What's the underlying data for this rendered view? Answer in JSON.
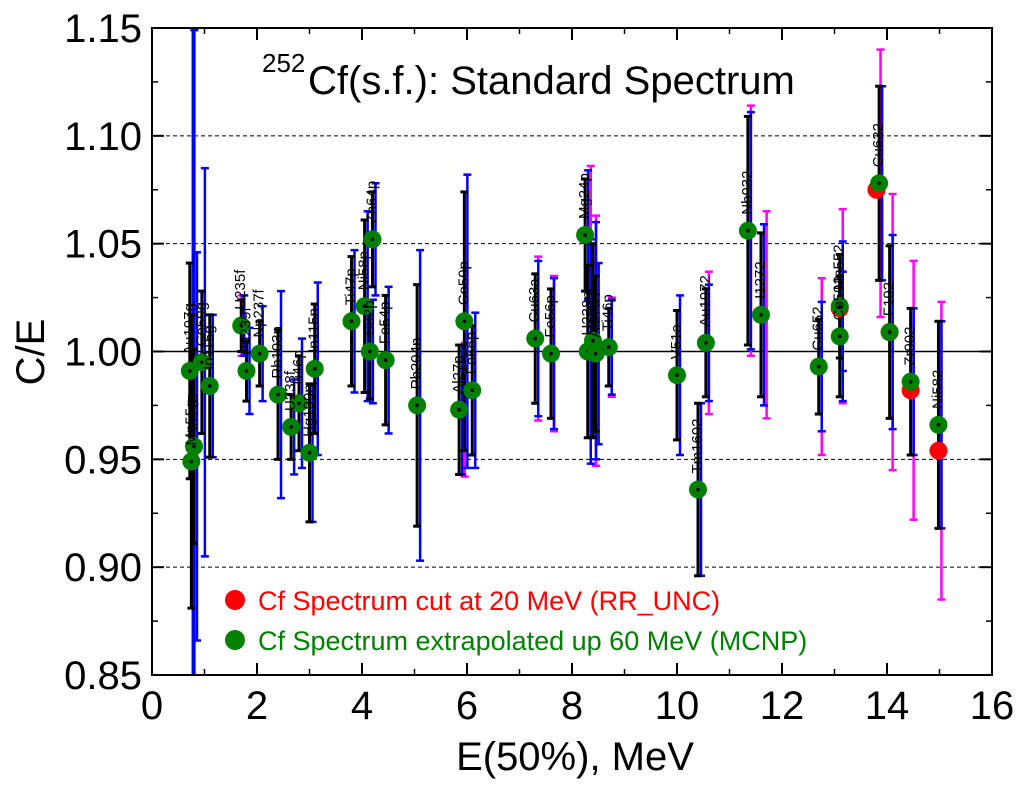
{
  "chart_data": {
    "type": "scatter",
    "title_prefix": "252",
    "title_main": "Cf(s.f.): Standard Spectrum",
    "xlabel": "E(50%),  MeV",
    "ylabel": "C/E",
    "xlim": [
      0,
      16
    ],
    "ylim": [
      0.85,
      1.15
    ],
    "x_ticks": [
      "0",
      "2",
      "4",
      "6",
      "8",
      "10",
      "12",
      "14",
      "16"
    ],
    "y_ticks": [
      "0.85",
      "0.90",
      "0.95",
      "1.00",
      "1.05",
      "1.10",
      "1.15"
    ],
    "grid": "dashed horizontal at 0.90, 0.95, 1.05, 1.10",
    "reference_line": 1.0,
    "legend_position": "bottom",
    "legend": [
      {
        "label": "Cf Spectrum cut at 20 MeV (RR_UNC)",
        "color": "#ff0000"
      },
      {
        "label": "Cf Spectrum extrapolated up 60 MeV (MCNP)",
        "color": "#008000"
      }
    ],
    "error_colors": {
      "blue": "#0000ff",
      "magenta": "#ff00ff",
      "black": "#000000"
    },
    "points": [
      {
        "label": "Mn55g",
        "x": 0.75,
        "y": 0.949,
        "err_b": 0.2,
        "err_k": 0.068
      },
      {
        "label": "In115",
        "x": 0.8,
        "y": 0.956,
        "err_b": 0.09,
        "err_k": 0.045
      },
      {
        "label": "Au197g",
        "x": 0.72,
        "y": 0.991,
        "err_b": 0.16,
        "err_k": 0.05
      },
      {
        "label": "Co59g",
        "x": 0.95,
        "y": 0.995,
        "err_b": 0.09,
        "err_k": 0.033
      },
      {
        "label": "In115g",
        "x": 1.1,
        "y": 0.984,
        "err_b": 0.033,
        "err_k": 0.033
      },
      {
        "label": "U235f",
        "x": 1.7,
        "y": 1.012,
        "err_b": 0.014,
        "err_k": 0.012
      },
      {
        "label": "Pu239f",
        "x": 1.8,
        "y": 0.991,
        "err_b": 0.02,
        "err_k": 0.014
      },
      {
        "label": "Np237f",
        "x": 2.05,
        "y": 0.999,
        "err_b": 0.022,
        "err_k": 0.015
      },
      {
        "label": "Rh103n",
        "x": 2.4,
        "y": 0.98,
        "err_b": 0.048,
        "err_k": 0.03
      },
      {
        "label": "U238f",
        "x": 2.65,
        "y": 0.965,
        "err_b": 0.022,
        "err_k": 0.015
      },
      {
        "label": "Ti46p",
        "x": 2.8,
        "y": 0.976,
        "err_b": 0.03,
        "err_k": 0.022
      },
      {
        "label": "Hg199n",
        "x": 3.0,
        "y": 0.953,
        "err_b": 0.032,
        "err_k": 0.032
      },
      {
        "label": "In115n",
        "x": 3.1,
        "y": 0.992,
        "err_b": 0.04,
        "err_k": 0.03
      },
      {
        "label": "Ti47p",
        "x": 3.8,
        "y": 1.014,
        "err_b": 0.033,
        "err_k": 0.03
      },
      {
        "label": "Ni58p",
        "x": 4.05,
        "y": 1.021,
        "err_b": 0.044,
        "err_k": 0.04
      },
      {
        "label": "S32p",
        "x": 4.15,
        "y": 1.0,
        "err_b": 0.024,
        "err_k": 0.022
      },
      {
        "label": "Zn64p",
        "x": 4.2,
        "y": 1.052,
        "err_b": 0.026,
        "err_k": 0.022
      },
      {
        "label": "Fe54p",
        "x": 4.45,
        "y": 0.996,
        "err_b": 0.034,
        "err_k": 0.03
      },
      {
        "label": "Pb204n",
        "x": 5.05,
        "y": 0.975,
        "err_b": 0.072,
        "err_k": 0.056
      },
      {
        "label": "Al27p",
        "x": 5.85,
        "y": 0.973,
        "err_b": 0.03,
        "err_k": 0.03
      },
      {
        "label": "Co59p",
        "x": 5.95,
        "y": 1.014,
        "err_b": 0.068,
        "err_k": 0.06
      },
      {
        "label": "Fe56p",
        "x": 6.1,
        "y": 0.982,
        "err_b": 0.036,
        "err_k": 0.03
      },
      {
        "label": "Cu63a",
        "x": 7.3,
        "y": 1.006,
        "err_b": 0.036,
        "err_k": 0.03
      },
      {
        "label": "Fe56p",
        "x": 7.6,
        "y": 0.999,
        "err_b": 0.035,
        "err_k": 0.03
      },
      {
        "label": "Mg24p",
        "x": 8.25,
        "y": 1.054,
        "err_b": 0.03,
        "err_k": 0.026
      },
      {
        "label": "U238n",
        "x": 8.3,
        "y": 1.0,
        "err_b": 0.052,
        "err_k": 0.04
      },
      {
        "label": "Ti48p",
        "x": 8.4,
        "y": 1.005,
        "err_b": 0.055,
        "err_k": 0.045
      },
      {
        "label": "Al27a",
        "x": 8.45,
        "y": 0.999,
        "err_b": 0.042,
        "err_k": 0.036
      },
      {
        "label": "Ti46p",
        "x": 8.7,
        "y": 1.002,
        "err_b": 0.022,
        "err_k": 0.018
      },
      {
        "label": "V51a",
        "x": 10.0,
        "y": 0.989,
        "err_b": 0.037,
        "err_k": 0.03
      },
      {
        "label": "Tm1692",
        "x": 10.4,
        "y": 0.936,
        "err_b": 0.04,
        "err_k": 0.04
      },
      {
        "label": "Au1972",
        "x": 10.55,
        "y": 1.004,
        "err_b": 0.027,
        "err_k": 0.025
      },
      {
        "label": "Nb932",
        "x": 11.35,
        "y": 1.056,
        "err_b": 0.055,
        "err_k": 0.053
      },
      {
        "label": "I1272",
        "x": 11.6,
        "y": 1.017,
        "err_b": 0.042,
        "err_k": 0.038
      },
      {
        "label": "Cu652",
        "x": 12.7,
        "y": 0.993,
        "err_b": 0.03,
        "err_k": 0.022
      },
      {
        "label": "Co592",
        "x": 13.1,
        "y": 1.007,
        "err_b": 0.03,
        "err_k": 0.028
      },
      {
        "label": "Mn552",
        "x": 13.1,
        "y": 1.021,
        "err_b": 0.03,
        "err_k": 0.024
      },
      {
        "label": "Cu632",
        "x": 13.85,
        "y": 1.078,
        "err_b": 0.045,
        "err_k": 0.045
      },
      {
        "label": "F192",
        "x": 14.05,
        "y": 1.009,
        "err_b": 0.045,
        "err_k": 0.04
      },
      {
        "label": "Zr902",
        "x": 14.45,
        "y": 0.986,
        "err_b": 0.034,
        "err_k": 0.034
      },
      {
        "label": "Ni582",
        "x": 14.98,
        "y": 0.966,
        "err_b": 0.048,
        "err_k": 0.048
      }
    ],
    "red_points": [
      {
        "x": 13.8,
        "y": 1.075,
        "err_m": 0.064
      },
      {
        "x": 14.05,
        "y": 1.009,
        "err_m": 0.063
      },
      {
        "x": 14.45,
        "y": 0.982,
        "err_m": 0.059
      },
      {
        "x": 14.98,
        "y": 0.954,
        "err_m": 0.069
      },
      {
        "x": 13.1,
        "y": 1.02,
        "err_m": 0.045
      }
    ],
    "magenta_bars": [
      {
        "x": 1.65,
        "y": 1.012,
        "err": 0.014
      },
      {
        "x": 5.9,
        "y": 0.973,
        "err": 0.031
      },
      {
        "x": 7.3,
        "y": 1.006,
        "err": 0.038
      },
      {
        "x": 7.6,
        "y": 0.999,
        "err": 0.036
      },
      {
        "x": 8.3,
        "y": 1.054,
        "err": 0.032
      },
      {
        "x": 8.4,
        "y": 1.005,
        "err": 0.058
      },
      {
        "x": 8.7,
        "y": 1.002,
        "err": 0.023
      },
      {
        "x": 10.55,
        "y": 1.004,
        "err": 0.033
      },
      {
        "x": 11.35,
        "y": 1.056,
        "err": 0.058
      },
      {
        "x": 11.65,
        "y": 1.017,
        "err": 0.048
      },
      {
        "x": 12.7,
        "y": 0.993,
        "err": 0.041
      },
      {
        "x": 13.1,
        "y": 1.021,
        "err": 0.045
      },
      {
        "x": 13.82,
        "y": 1.078,
        "err": 0.062
      },
      {
        "x": 14.05,
        "y": 1.009,
        "err": 0.064
      },
      {
        "x": 14.45,
        "y": 0.982,
        "err": 0.06
      },
      {
        "x": 14.98,
        "y": 0.954,
        "err": 0.069
      }
    ]
  }
}
